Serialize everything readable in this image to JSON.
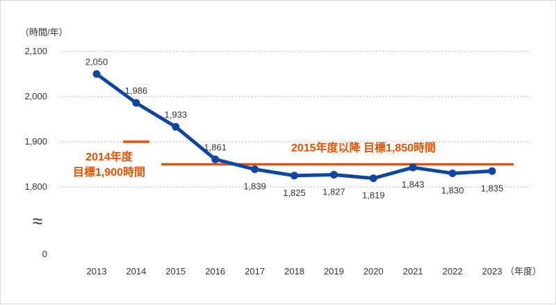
{
  "chart_data": {
    "type": "line",
    "unit_label": "（時間/年）",
    "x_unit_label": "（年度）",
    "x": [
      "2013",
      "2014",
      "2015",
      "2016",
      "2017",
      "2018",
      "2019",
      "2020",
      "2021",
      "2022",
      "2023"
    ],
    "values": [
      2050,
      1986,
      1933,
      1861,
      1839,
      1825,
      1827,
      1819,
      1843,
      1830,
      1835
    ],
    "value_labels": [
      "2,050",
      "1,986",
      "1,933",
      "1,861",
      "1,839",
      "1,825",
      "1,827",
      "1,819",
      "1,843",
      "1,830",
      "1,835"
    ],
    "y_ticks": [
      {
        "value": 2100,
        "label": "2,100"
      },
      {
        "value": 2000,
        "label": "2,000"
      },
      {
        "value": 1900,
        "label": "1,900"
      },
      {
        "value": 1800,
        "label": "1,800"
      },
      {
        "value": 0,
        "label": "0"
      }
    ],
    "axis_break_symbol": "≈",
    "grid": true,
    "line_color": "#0d47a1",
    "target_color": "#e65100",
    "targets": [
      {
        "label_lines": [
          "2014年度",
          "目標1,900時間"
        ],
        "value": 1900,
        "x_from": "2014",
        "x_to": "2014"
      },
      {
        "label_lines": [
          "2015年度以降 目標1,850時間"
        ],
        "value": 1850,
        "x_from": "2015",
        "x_to": "2023"
      }
    ]
  }
}
